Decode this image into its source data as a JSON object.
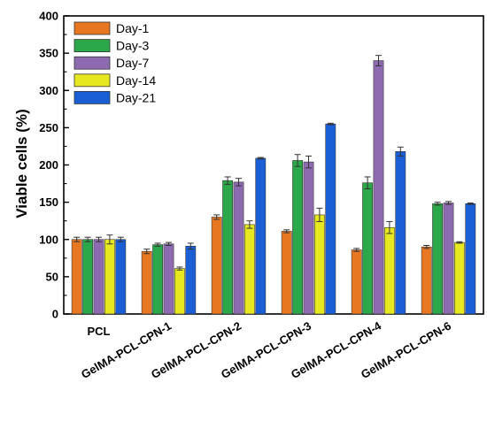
{
  "chart_data": {
    "type": "bar",
    "title": "",
    "xlabel": "",
    "ylabel": "Viable cells (%)",
    "ylim": [
      0,
      400
    ],
    "yticks": [
      0,
      50,
      100,
      150,
      200,
      250,
      300,
      350,
      400
    ],
    "grid": false,
    "legend_position": "top-left",
    "categories": [
      "PCL",
      "GelMA-PCL-CPN-1",
      "GelMA-PCL-CPN-2",
      "GelMA-PCL-CPN-3",
      "GelMA-PCL-CPN-4",
      "GelMA-PCL-CPN-6"
    ],
    "series": [
      {
        "name": "Day-1",
        "color": "#e87722",
        "values": [
          100,
          84,
          130,
          111,
          86,
          90
        ],
        "errors": [
          3,
          3,
          3,
          2,
          2,
          2
        ]
      },
      {
        "name": "Day-3",
        "color": "#2aa84a",
        "values": [
          100,
          93,
          179,
          206,
          176,
          148
        ],
        "errors": [
          3,
          2,
          5,
          8,
          8,
          2
        ]
      },
      {
        "name": "Day-7",
        "color": "#8e6bb0",
        "values": [
          100,
          94,
          177,
          204,
          340,
          149
        ],
        "errors": [
          3,
          2,
          5,
          8,
          7,
          2
        ]
      },
      {
        "name": "Day-14",
        "color": "#e8e820",
        "values": [
          100,
          61,
          120,
          133,
          116,
          96
        ],
        "errors": [
          6,
          2,
          5,
          9,
          8,
          1
        ]
      },
      {
        "name": "Day-21",
        "color": "#1a5fd6",
        "values": [
          100,
          91,
          209,
          255,
          218,
          148
        ],
        "errors": [
          3,
          4,
          1,
          1,
          6,
          1
        ]
      }
    ]
  }
}
